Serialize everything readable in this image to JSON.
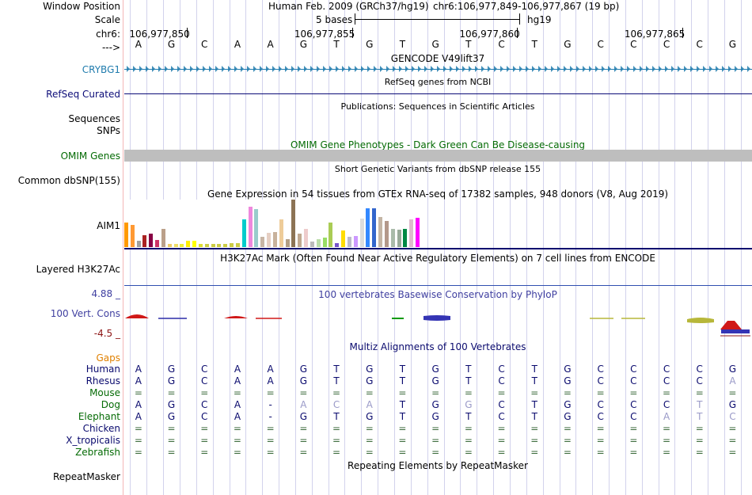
{
  "header": {
    "window_position_label": "Window Position",
    "scale_label": "Scale",
    "chrom_label": "chr6:",
    "strand_label": "--->",
    "assembly": "Human Feb. 2009 (GRCh37/hg19)",
    "position": "chr6:106,977,849-106,977,867 (19 bp)",
    "scale_text": "5 bases",
    "db": "hg19",
    "ticks": [
      "106,977,850",
      "106,977,855",
      "106,977,860",
      "106,977,865"
    ],
    "bases": [
      "A",
      "G",
      "C",
      "A",
      "A",
      "G",
      "T",
      "G",
      "T",
      "G",
      "T",
      "C",
      "T",
      "G",
      "C",
      "C",
      "C",
      "C",
      "G"
    ]
  },
  "colors": {
    "gencode": "#1f7bad",
    "refseq": "#0c0c78",
    "omim": "#056b05",
    "phylop": "#3f3fa0",
    "gaps": "#e08000",
    "alignment_label": "#0a0a6e",
    "divider": "#f3b6b6",
    "grid": "#d2d2ec"
  },
  "tracks": {
    "gencode": {
      "label": "CRYBG1",
      "title": "GENCODE V49lift37"
    },
    "refseq": {
      "label": "RefSeq Curated",
      "title": "RefSeq genes from NCBI"
    },
    "publications": {
      "title": "Publications: Sequences in Scientific Articles",
      "label_line1": "Sequences",
      "label_line2": "SNPs"
    },
    "omim": {
      "label": "OMIM Genes",
      "title": "OMIM Gene Phenotypes - Dark Green Can Be Disease-causing"
    },
    "dbsnp": {
      "title": "Short Genetic Variants from dbSNP release 155",
      "label": "Common dbSNP(155)"
    },
    "gtex": {
      "title": "Gene Expression in 54 tissues from GTEx RNA-seq of 17382 samples, 948 donors (V8, Aug 2019)",
      "label": "AIM1",
      "bars": [
        {
          "v": 0.52,
          "c": "#ff9900"
        },
        {
          "v": 0.46,
          "c": "#ff9933"
        },
        {
          "v": 0.13,
          "c": "#a0a0a0"
        },
        {
          "v": 0.25,
          "c": "#aa2222"
        },
        {
          "v": 0.28,
          "c": "#880044"
        },
        {
          "v": 0.15,
          "c": "#cc3366"
        },
        {
          "v": 0.38,
          "c": "#bba08a"
        },
        {
          "v": 0.07,
          "c": "#eecc66"
        },
        {
          "v": 0.07,
          "c": "#eedd66"
        },
        {
          "v": 0.07,
          "c": "#eeee33"
        },
        {
          "v": 0.14,
          "c": "#ffee00"
        },
        {
          "v": 0.14,
          "c": "#ffff00"
        },
        {
          "v": 0.07,
          "c": "#dddd33"
        },
        {
          "v": 0.06,
          "c": "#cccc44"
        },
        {
          "v": 0.07,
          "c": "#cccc44"
        },
        {
          "v": 0.06,
          "c": "#cccc44"
        },
        {
          "v": 0.07,
          "c": "#cccc44"
        },
        {
          "v": 0.09,
          "c": "#cccc44"
        },
        {
          "v": 0.08,
          "c": "#cccc44"
        },
        {
          "v": 0.58,
          "c": "#00cccc"
        },
        {
          "v": 0.85,
          "c": "#ee88dd"
        },
        {
          "v": 0.8,
          "c": "#99cccc"
        },
        {
          "v": 0.22,
          "c": "#c8b5a5"
        },
        {
          "v": 0.3,
          "c": "#e6cfc3"
        },
        {
          "v": 0.32,
          "c": "#c8b29c"
        },
        {
          "v": 0.58,
          "c": "#eecc99"
        },
        {
          "v": 0.16,
          "c": "#b39e84"
        },
        {
          "v": 1.0,
          "c": "#8c7355"
        },
        {
          "v": 0.28,
          "c": "#c0a890"
        },
        {
          "v": 0.38,
          "c": "#eecccc"
        },
        {
          "v": 0.12,
          "c": "#bbbbbb"
        },
        {
          "v": 0.16,
          "c": "#bbddaa"
        },
        {
          "v": 0.2,
          "c": "#99dd66"
        },
        {
          "v": 0.52,
          "c": "#aacc55"
        },
        {
          "v": 0.08,
          "c": "#7755cc"
        },
        {
          "v": 0.35,
          "c": "#ffdd00"
        },
        {
          "v": 0.22,
          "c": "#bbbbcc"
        },
        {
          "v": 0.24,
          "c": "#cc99ff"
        },
        {
          "v": 0.6,
          "c": "#dddddd"
        },
        {
          "v": 0.82,
          "c": "#3388ff"
        },
        {
          "v": 0.82,
          "c": "#3366cc"
        },
        {
          "v": 0.63,
          "c": "#c4b5a5"
        },
        {
          "v": 0.55,
          "c": "#b3988a"
        },
        {
          "v": 0.38,
          "c": "#aabbaa"
        },
        {
          "v": 0.36,
          "c": "#99aa99"
        },
        {
          "v": 0.38,
          "c": "#008844"
        },
        {
          "v": 0.58,
          "c": "#ddbbcc"
        },
        {
          "v": 0.62,
          "c": "#ff00ff"
        }
      ]
    },
    "h3k27ac": {
      "title": "H3K27Ac Mark (Often Found Near Active Regulatory Elements) on 7 cell lines from ENCODE",
      "label": "Layered H3K27Ac"
    },
    "phylop": {
      "title": "100 vertebrates Basewise Conservation by PhyloP",
      "label": "100 Vert. Cons",
      "max": "4.88 _",
      "min": "-4.5 _"
    },
    "multiz": {
      "title": "Multiz Alignments of 100 Vertebrates",
      "gaps_label": "Gaps"
    },
    "repeatmasker": {
      "title": "Repeating Elements by RepeatMasker",
      "label": "RepeatMasker"
    }
  },
  "alignments": [
    {
      "species": "Human",
      "seq": [
        "A",
        "G",
        "C",
        "A",
        "A",
        "G",
        "T",
        "G",
        "T",
        "G",
        "T",
        "C",
        "T",
        "G",
        "C",
        "C",
        "C",
        "C",
        "G"
      ],
      "faded": []
    },
    {
      "species": "Rhesus",
      "seq": [
        "A",
        "G",
        "C",
        "A",
        "A",
        "G",
        "T",
        "G",
        "T",
        "G",
        "T",
        "C",
        "T",
        "G",
        "C",
        "C",
        "C",
        "C",
        "A"
      ],
      "faded": [
        18
      ]
    },
    {
      "species": "Mouse",
      "seq": [
        "=",
        "=",
        "=",
        "=",
        "=",
        "=",
        "=",
        "=",
        "=",
        "=",
        "=",
        "=",
        "=",
        "=",
        "=",
        "=",
        "=",
        "=",
        "="
      ],
      "faded": []
    },
    {
      "species": "Dog",
      "seq": [
        "A",
        "G",
        "C",
        "A",
        "-",
        "A",
        "C",
        "A",
        "T",
        "G",
        "G",
        "C",
        "T",
        "G",
        "C",
        "C",
        "C",
        "T",
        "G"
      ],
      "faded": [
        5,
        6,
        7,
        10,
        17
      ]
    },
    {
      "species": "Elephant",
      "seq": [
        "A",
        "G",
        "C",
        "A",
        "-",
        "G",
        "T",
        "G",
        "T",
        "G",
        "T",
        "C",
        "T",
        "G",
        "C",
        "C",
        "A",
        "T",
        "C"
      ],
      "faded": [
        16,
        17,
        18
      ]
    },
    {
      "species": "Chicken",
      "seq": [
        "=",
        "=",
        "=",
        "=",
        "=",
        "=",
        "=",
        "=",
        "=",
        "=",
        "=",
        "=",
        "=",
        "=",
        "=",
        "=",
        "=",
        "=",
        "="
      ],
      "faded": []
    },
    {
      "species": "X_tropicalis",
      "seq": [
        "=",
        "=",
        "=",
        "=",
        "=",
        "=",
        "=",
        "=",
        "=",
        "=",
        "=",
        "=",
        "=",
        "=",
        "=",
        "=",
        "=",
        "=",
        "="
      ],
      "faded": []
    },
    {
      "species": "Zebrafish",
      "seq": [
        "=",
        "=",
        "=",
        "=",
        "=",
        "=",
        "=",
        "=",
        "=",
        "=",
        "=",
        "=",
        "=",
        "=",
        "=",
        "=",
        "=",
        "=",
        "="
      ],
      "faded": []
    }
  ]
}
